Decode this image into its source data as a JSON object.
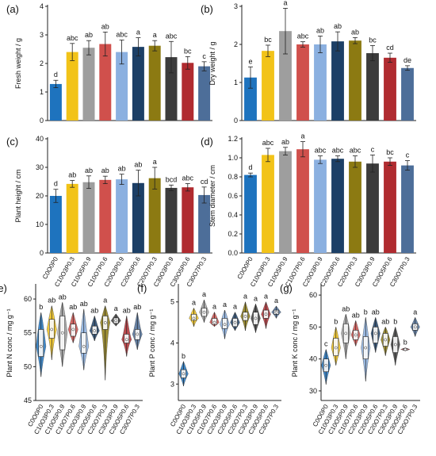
{
  "colors": {
    "C0O0P0": "#1e73be",
    "C10O3P0.3": "#f2c318",
    "C10O5P0.9": "#9e9e9e",
    "C10O7P0.6": "#d0504c",
    "C20O3P0.9": "#8bb0e0",
    "C20O5P0.6": "#1c3f66",
    "C20O7P0.3": "#8c7a12",
    "C30O3P0.9": "#3c3c3c",
    "C30O5P0.6": "#b02b30",
    "C30O7P0.3": "#4d6e99"
  },
  "chart_data": [
    {
      "id": "a",
      "panel_label": "(a)",
      "type": "bar",
      "ylabel": "Fresh weight / g",
      "ylim": [
        0,
        4
      ],
      "yticks": [
        "0",
        "1",
        "2",
        "3",
        "4"
      ],
      "categories": [
        "C0O0P0",
        "C10O3P0.3",
        "C10O5P0.9",
        "C10O7P0.6",
        "C20O3P0.9",
        "C20O5P0.6",
        "C20O7P0.3",
        "C30O3P0.9",
        "C30O5P0.6",
        "C30O7P0.3"
      ],
      "tick_labels": [],
      "values": [
        1.28,
        2.4,
        2.55,
        2.68,
        2.4,
        2.58,
        2.62,
        2.22,
        2.02,
        1.9
      ],
      "errors": [
        0.13,
        0.3,
        0.25,
        0.42,
        0.42,
        0.32,
        0.18,
        0.55,
        0.22,
        0.16
      ],
      "letters": [
        "d",
        "abc",
        "ab",
        "ab",
        "abc",
        "a",
        "a",
        "abc",
        "bc",
        "c"
      ]
    },
    {
      "id": "b",
      "panel_label": "(b)",
      "type": "bar",
      "ylabel": "Dry weight / g",
      "ylim": [
        0,
        3
      ],
      "yticks": [
        "0",
        "1",
        "2",
        "3"
      ],
      "categories": [
        "C0O0P0",
        "C10O3P0.3",
        "C10O5P0.9",
        "C10O7P0.6",
        "C20O3P0.9",
        "C20O5P0.6",
        "C20O7P0.3",
        "C30O3P0.9",
        "C30O5P0.6",
        "C30O7P0.3"
      ],
      "tick_labels": [],
      "values": [
        1.13,
        1.83,
        2.35,
        2.0,
        2.0,
        2.08,
        2.1,
        1.77,
        1.65,
        1.38
      ],
      "errors": [
        0.28,
        0.15,
        0.6,
        0.07,
        0.22,
        0.25,
        0.08,
        0.2,
        0.12,
        0.06
      ],
      "letters": [
        "e",
        "bc",
        "a",
        "abc",
        "ab",
        "ab",
        "ab",
        "bc",
        "cd",
        "de"
      ]
    },
    {
      "id": "c",
      "panel_label": "(c)",
      "type": "bar",
      "ylabel": "Plant height / cm",
      "ylim": [
        0,
        40
      ],
      "yticks": [
        "0",
        "10",
        "20",
        "30",
        "40"
      ],
      "categories": [
        "C0O0P0",
        "C10O3P0.3",
        "C10O5P0.9",
        "C10O7P0.6",
        "C20O3P0.9",
        "C20O5P0.6",
        "C20O7P0.3",
        "C30O3P0.9",
        "C30O5P0.6",
        "C30O7P0.3"
      ],
      "tick_labels": [
        "C0O0P0",
        "C10O3P0.3",
        "C10O5P0.9",
        "C10O7P0.6",
        "C20O3P0.9",
        "C20O5P0.6",
        "C20O7P0.3",
        "C30O3P0.9",
        "C30O5P0.6",
        "C30O7P0.3"
      ],
      "values": [
        20.0,
        24.2,
        24.8,
        25.6,
        25.8,
        24.5,
        26.2,
        22.8,
        23.0,
        20.3
      ],
      "errors": [
        2.3,
        1.2,
        2.2,
        1.3,
        1.8,
        4.5,
        3.8,
        1.0,
        1.3,
        2.8
      ],
      "letters": [
        "d",
        "ab",
        "ab",
        "ab",
        "ab",
        "ab",
        "a",
        "bcd",
        "abc",
        "cd"
      ]
    },
    {
      "id": "d",
      "panel_label": "(d)",
      "type": "bar",
      "ylabel": "Stem diameter / cm",
      "ylim": [
        0,
        1.2
      ],
      "yticks": [
        "0.0",
        "0.2",
        "0.4",
        "0.6",
        "0.8",
        "1.0",
        "1.2"
      ],
      "categories": [
        "C0O0P0",
        "C10O3P0.3",
        "C10O5P0.9",
        "C10O7P0.6",
        "C20O3P0.9",
        "C20O5P0.6",
        "C20O7P0.3",
        "C30O3P0.9",
        "C30O5P0.6",
        "C30O7P0.3"
      ],
      "tick_labels": [
        "C0O0P0",
        "C10O3P0.3",
        "C10O5P0.9",
        "C10O7P0.6",
        "C20O3P0.9",
        "C20O5P0.6",
        "C20O7P0.3",
        "C30O3P0.9",
        "C30O5P0.6",
        "C30O7P0.3"
      ],
      "values": [
        0.82,
        1.03,
        1.07,
        1.09,
        0.98,
        0.99,
        0.96,
        0.94,
        0.96,
        0.92
      ],
      "errors": [
        0.02,
        0.07,
        0.04,
        0.08,
        0.04,
        0.03,
        0.06,
        0.09,
        0.04,
        0.05
      ],
      "letters": [
        "d",
        "abc",
        "ab",
        "a",
        "abc",
        "abc",
        "abc",
        "c",
        "bc",
        "c"
      ]
    },
    {
      "id": "e",
      "panel_label": "(e)",
      "type": "violin",
      "ylabel": "Plant N conc / mg g⁻¹",
      "ylim": [
        45,
        62
      ],
      "yticks": [
        45,
        50,
        55,
        60
      ],
      "categories": [
        "C0O0P0",
        "C10O3P0.3",
        "C10O5P0.9",
        "C10O7P0.6",
        "C20O3P0.9",
        "C20O5P0.6",
        "C20O7P0.3",
        "C30O3P0.9",
        "C30O5P0.6",
        "C30O7P0.3"
      ],
      "tick_labels": [
        "C0O0P0",
        "C10O3P0.3",
        "C10O5P0.9",
        "C10O7P0.6",
        "C20O3P0.9",
        "C20O5P0.6",
        "C20O7P0.3",
        "C30O3P0.9",
        "C30O5P0.6",
        "C30O7P0.3"
      ],
      "min": [
        48.5,
        51.0,
        50.0,
        53.5,
        49.5,
        53.8,
        48.0,
        56.0,
        51.5,
        52.5
      ],
      "q1": [
        51.5,
        54.2,
        52.5,
        54.5,
        52.0,
        54.8,
        55.5,
        56.4,
        53.5,
        54.0
      ],
      "median": [
        53.0,
        55.5,
        55.0,
        55.5,
        53.0,
        55.3,
        56.5,
        56.8,
        54.0,
        54.8
      ],
      "q3": [
        55.5,
        57.0,
        57.5,
        56.3,
        55.0,
        56.0,
        57.5,
        57.2,
        54.8,
        55.5
      ],
      "max": [
        58.0,
        59.0,
        59.5,
        58.0,
        58.5,
        57.5,
        59.0,
        57.8,
        57.5,
        58.0
      ],
      "letters": [
        "b",
        "ab",
        "ab",
        "ab",
        "ab",
        "ab",
        "a",
        "a",
        "ab",
        "ab"
      ]
    },
    {
      "id": "f",
      "panel_label": "(f)",
      "type": "violin",
      "ylabel": "Plant P conc / mg g⁻¹",
      "ylim": [
        2.6,
        5.4
      ],
      "yticks": [
        3,
        4,
        5
      ],
      "categories": [
        "C0O0P0",
        "C10O3P0.3",
        "C10O5P0.9",
        "C10O7P0.6",
        "C20O3P0.9",
        "C20O5P0.6",
        "C20O7P0.3",
        "C30O3P0.9",
        "C30O5P0.6",
        "C30O7P0.3"
      ],
      "tick_labels": [
        "C0O0P0",
        "C10O3P0.3",
        "C10O5P0.9",
        "C10O7P0.6",
        "C20O3P0.9",
        "C20O5P0.6",
        "C20O7P0.3",
        "C30O3P0.9",
        "C30O5P0.6",
        "C30O7P0.3"
      ],
      "min": [
        2.95,
        4.4,
        4.5,
        4.4,
        4.1,
        4.3,
        4.3,
        4.25,
        4.35,
        4.6
      ],
      "q1": [
        3.15,
        4.55,
        4.65,
        4.45,
        4.35,
        4.4,
        4.55,
        4.45,
        4.6,
        4.7
      ],
      "median": [
        3.25,
        4.6,
        4.75,
        4.5,
        4.45,
        4.5,
        4.65,
        4.6,
        4.7,
        4.75
      ],
      "q3": [
        3.35,
        4.7,
        4.85,
        4.6,
        4.6,
        4.6,
        4.75,
        4.75,
        4.8,
        4.8
      ],
      "max": [
        3.55,
        4.85,
        5.05,
        4.75,
        4.8,
        4.75,
        5.0,
        4.95,
        5.0,
        4.9
      ],
      "letters": [
        "b",
        "a",
        "a",
        "a",
        "a",
        "a",
        "a",
        "a",
        "a",
        "a"
      ]
    },
    {
      "id": "g",
      "panel_label": "(g)",
      "type": "violin",
      "ylabel": "Plant K conc / mg g⁻¹",
      "ylim": [
        27,
        63
      ],
      "yticks": [
        30,
        40,
        50,
        60
      ],
      "categories": [
        "C0O0P0",
        "C10O3P0.3",
        "C10O5P0.9",
        "C10O7P0.6",
        "C20O3P0.9",
        "C20O5P0.6",
        "C20O7P0.3",
        "C30O3P0.9",
        "C30O5P0.6",
        "C30O7P0.3"
      ],
      "tick_labels": [
        "C0O0P0",
        "C10O3P0.3",
        "C10O5P0.9",
        "C10O7P0.6",
        "C20O3P0.9",
        "C20O5P0.6",
        "C20O7P0.3",
        "C30O3P0.9",
        "C30O5P0.6",
        "C30O7P0.3"
      ],
      "min": [
        32.0,
        38.0,
        40.0,
        44.0,
        33.0,
        42.0,
        41.0,
        38.0,
        42.5,
        47.0
      ],
      "q1": [
        36.0,
        41.0,
        45.0,
        46.0,
        40.0,
        45.0,
        44.0,
        42.0,
        42.8,
        49.0
      ],
      "median": [
        38.0,
        43.5,
        48.0,
        47.5,
        43.5,
        48.0,
        46.0,
        44.5,
        43.0,
        50.0
      ],
      "q3": [
        40.0,
        46.5,
        51.0,
        49.0,
        47.0,
        50.0,
        48.0,
        47.0,
        43.2,
        51.0
      ],
      "max": [
        43.0,
        50.0,
        54.0,
        52.0,
        53.0,
        53.0,
        50.0,
        50.0,
        43.5,
        53.0
      ],
      "letters": [
        "c",
        "b",
        "ab",
        "ab",
        "b",
        "ab",
        "ab",
        "b",
        "b",
        "a"
      ]
    }
  ]
}
